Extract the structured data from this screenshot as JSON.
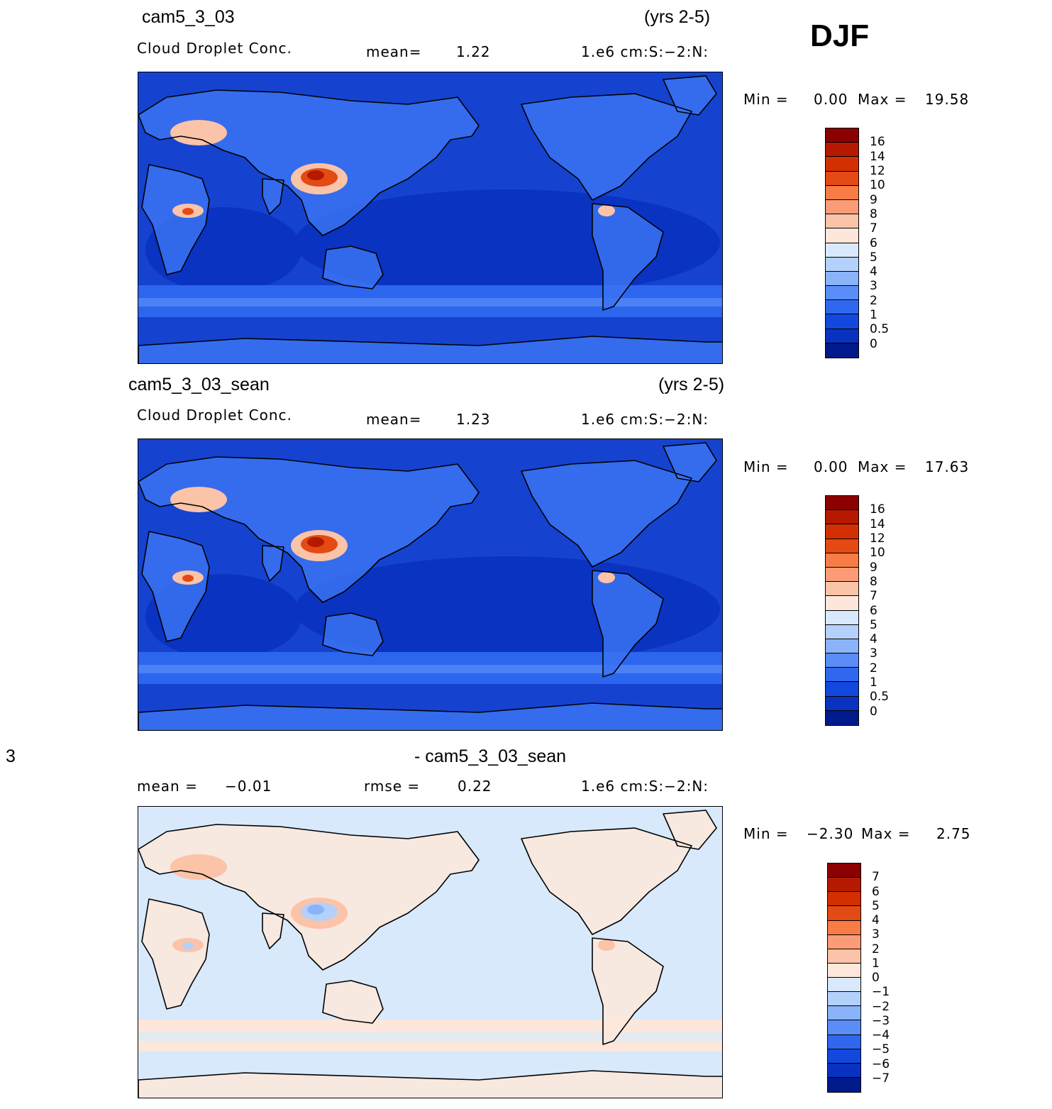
{
  "season": "DJF",
  "panels": [
    {
      "case_name": "cam5_3_03",
      "years": "(yrs 2-5)",
      "variable": "Cloud Droplet Conc.",
      "mean_label": "mean=",
      "mean_value": "1.22",
      "units": "1.e6 cm:S:-2:N:",
      "min_label": "Min =",
      "min_value": "0.00",
      "max_label": "Max =",
      "max_value": "19.58",
      "colorbar": {
        "labels": [
          "16",
          "14",
          "12",
          "10",
          "9",
          "8",
          "7",
          "6",
          "5",
          "4",
          "3",
          "2",
          "1",
          "0.5",
          "0"
        ],
        "colors": [
          "#8b0000",
          "#b51a00",
          "#d42f00",
          "#e34a14",
          "#f87c46",
          "#fb9c76",
          "#fbc3a8",
          "#fde7da",
          "#d7e9fb",
          "#b3d1fb",
          "#8ab3f9",
          "#5a8df7",
          "#2f68ef",
          "#1348df",
          "#0a32c0",
          "#001a8c"
        ]
      },
      "field_colors": {
        "ocean": "#1543d0",
        "ocean_deep": "#0a33c2",
        "band": "#2d66ee",
        "band2": "#5a8df7",
        "land": "#3a73f2",
        "hot1": "#fbc3a8",
        "hot2": "#e34a14",
        "hot3": "#b51a00"
      }
    },
    {
      "case_name": "cam5_3_03_sean",
      "years": "(yrs 2-5)",
      "variable": "Cloud Droplet Conc.",
      "mean_label": "mean=",
      "mean_value": "1.23",
      "units": "1.e6 cm:S:-2:N:",
      "min_label": "Min =",
      "min_value": "0.00",
      "max_label": "Max =",
      "max_value": "17.63",
      "colorbar": {
        "labels": [
          "16",
          "14",
          "12",
          "10",
          "9",
          "8",
          "7",
          "6",
          "5",
          "4",
          "3",
          "2",
          "1",
          "0.5",
          "0"
        ],
        "colors": [
          "#8b0000",
          "#b51a00",
          "#d42f00",
          "#e34a14",
          "#f87c46",
          "#fb9c76",
          "#fbc3a8",
          "#fde7da",
          "#d7e9fb",
          "#b3d1fb",
          "#8ab3f9",
          "#5a8df7",
          "#2f68ef",
          "#1348df",
          "#0a32c0",
          "#001a8c"
        ]
      },
      "field_colors": {
        "ocean": "#1543d0",
        "ocean_deep": "#0a33c2",
        "band": "#2d66ee",
        "band2": "#5a8df7",
        "land": "#3a73f2",
        "hot1": "#fbc3a8",
        "hot2": "#e34a14",
        "hot3": "#b51a00"
      }
    },
    {
      "title_left": "3",
      "title_center": "- cam5_3_03_sean",
      "mean_label": "mean =",
      "mean_value": "-0.01",
      "rmse_label": "rmse =",
      "rmse_value": "0.22",
      "units": "1.e6 cm:S:-2:N:",
      "min_label": "Min =",
      "min_value": "-2.30",
      "max_label": "Max =",
      "max_value": "2.75",
      "colorbar": {
        "labels": [
          "7",
          "6",
          "5",
          "4",
          "3",
          "2",
          "1",
          "0",
          "-1",
          "-2",
          "-3",
          "-4",
          "-5",
          "-6",
          "-7"
        ],
        "colors": [
          "#8b0000",
          "#b51a00",
          "#d42f00",
          "#e34a14",
          "#f87c46",
          "#fb9c76",
          "#fbc3a8",
          "#fde7da",
          "#d7e9fb",
          "#b3d1fb",
          "#8ab3f9",
          "#5a8df7",
          "#2f68ef",
          "#1348df",
          "#0a32c0",
          "#001a8c"
        ]
      },
      "field_colors": {
        "ocean": "#d7e9fb",
        "ocean_deep": "#d7e9fb",
        "band": "#fde7da",
        "band2": "#d7e9fb",
        "land": "#fde7da",
        "hot1": "#fbc3a8",
        "hot2": "#b3d1fb",
        "hot3": "#8ab3f9"
      }
    }
  ]
}
